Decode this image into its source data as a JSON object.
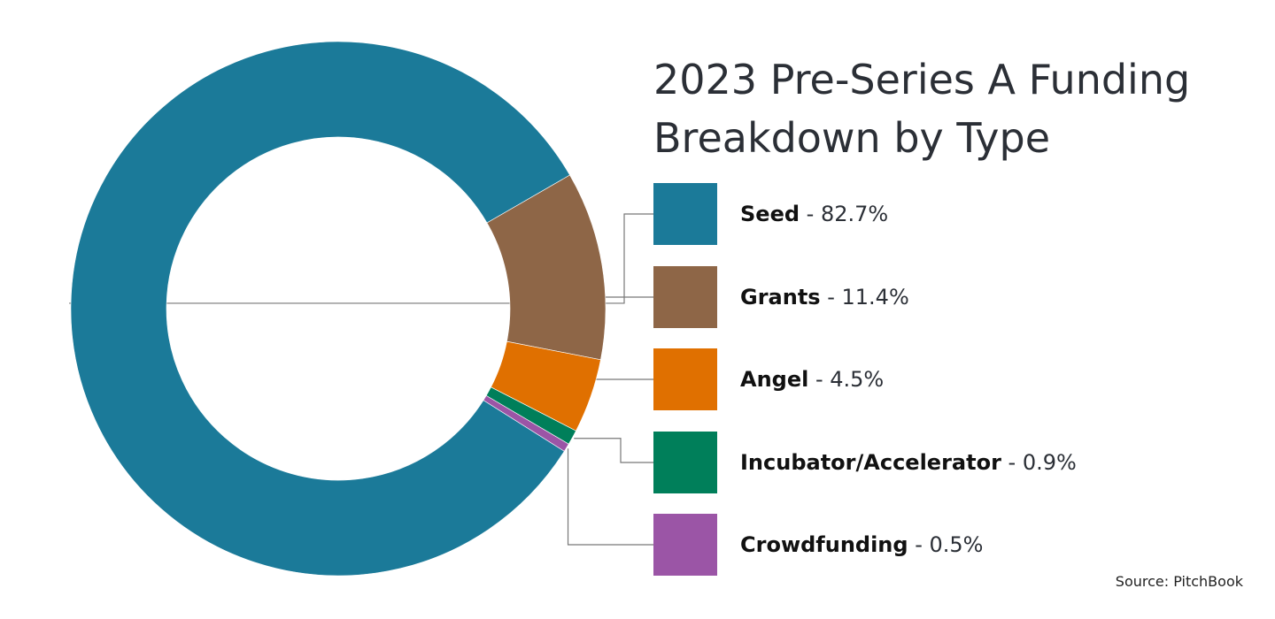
{
  "chart_data": {
    "type": "pie",
    "variant": "donut",
    "title_lines": [
      "2023 Pre-Series A Funding",
      "Breakdown by Type"
    ],
    "series": [
      {
        "name": "Seed",
        "value": 82.7,
        "label": "82.7%",
        "color": "#1b7a99"
      },
      {
        "name": "Grants",
        "value": 11.4,
        "label": "11.4%",
        "color": "#8e6647"
      },
      {
        "name": "Angel",
        "value": 4.5,
        "label": "4.5%",
        "color": "#e07000"
      },
      {
        "name": "Incubator/Accelerator",
        "value": 0.9,
        "label": "0.9%",
        "color": "#007f5a"
      },
      {
        "name": "Crowdfunding",
        "value": 0.5,
        "label": "0.5%",
        "color": "#9b55a6"
      }
    ],
    "legend_position": "right",
    "source": "Source: PitchBook"
  }
}
